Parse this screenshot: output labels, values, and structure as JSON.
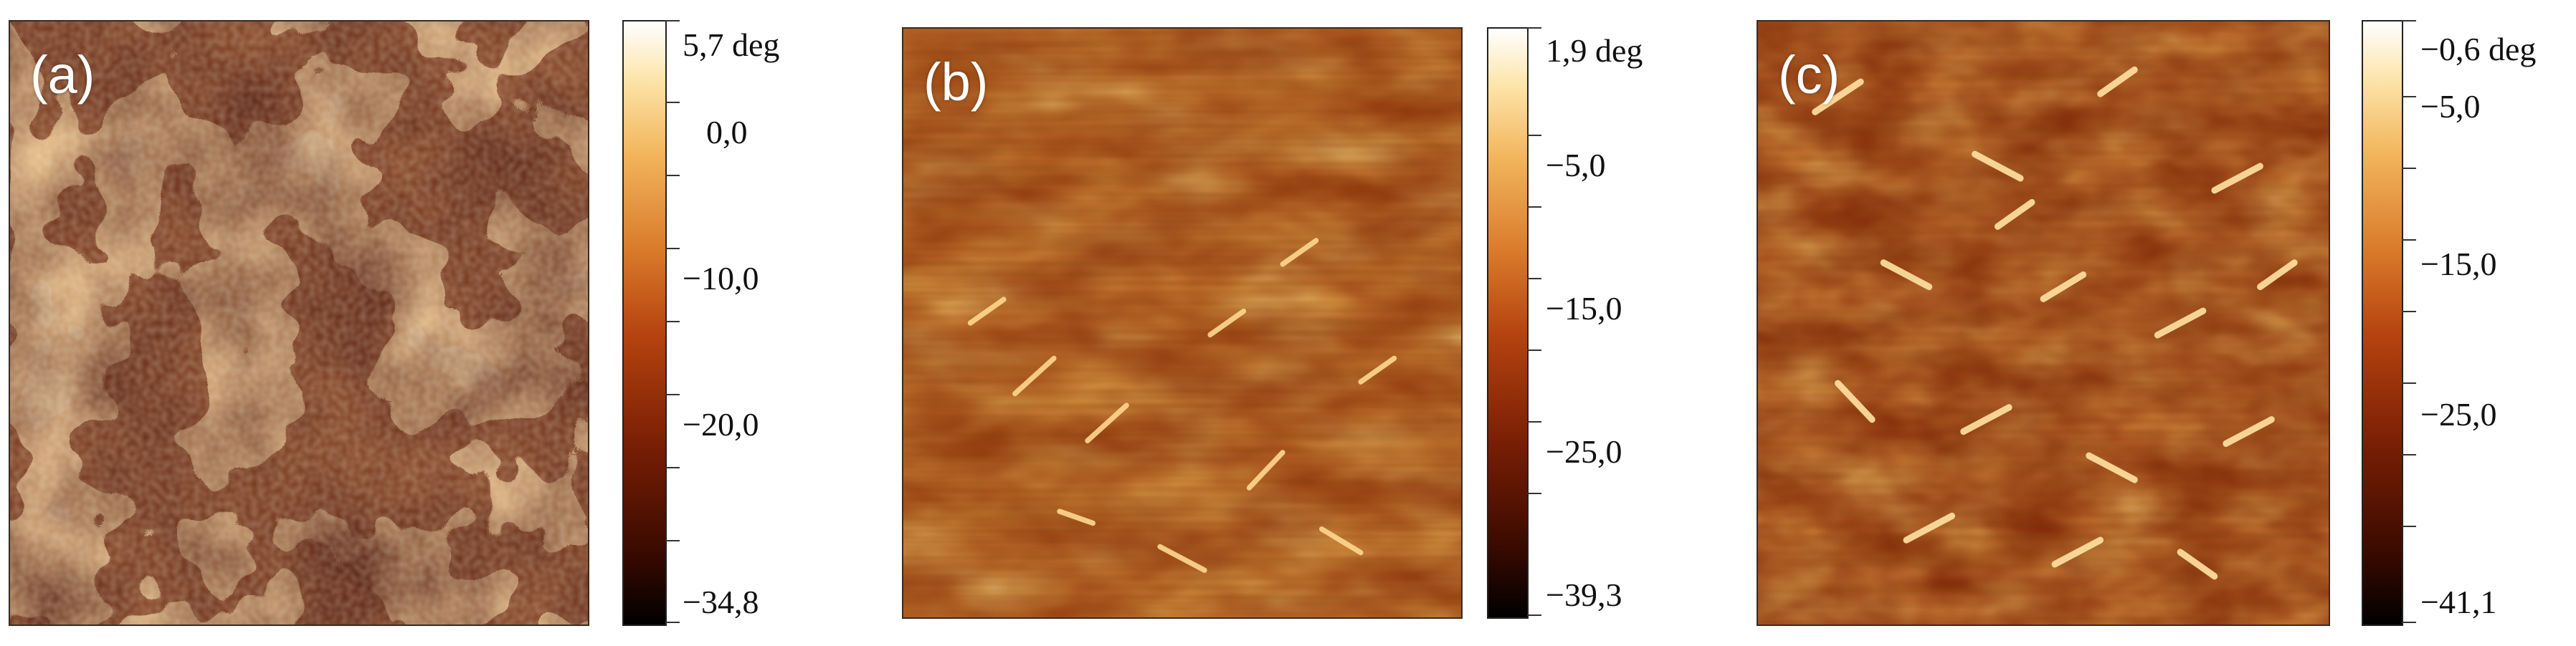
{
  "figure": {
    "panels": [
      {
        "label": "(a)",
        "colorbar": {
          "max_label": "5,7 deg",
          "min_label": "−34,8",
          "labels": [
            "0,0",
            "−10,0",
            "−20,0"
          ]
        }
      },
      {
        "label": "(b)",
        "colorbar": {
          "max_label": "1,9 deg",
          "min_label": "−39,3",
          "labels": [
            "−5,0",
            "−15,0",
            "−25,0"
          ]
        }
      },
      {
        "label": "(c)",
        "colorbar": {
          "max_label": "−0,6 deg",
          "min_label": "−41,1",
          "labels": [
            "−5,0",
            "−15,0",
            "−25,0"
          ]
        }
      }
    ],
    "colormap": [
      "#000000",
      "#3a0a00",
      "#7a1f05",
      "#b5430f",
      "#d97a2a",
      "#f2b55c",
      "#fde3a7",
      "#ffffff"
    ]
  }
}
